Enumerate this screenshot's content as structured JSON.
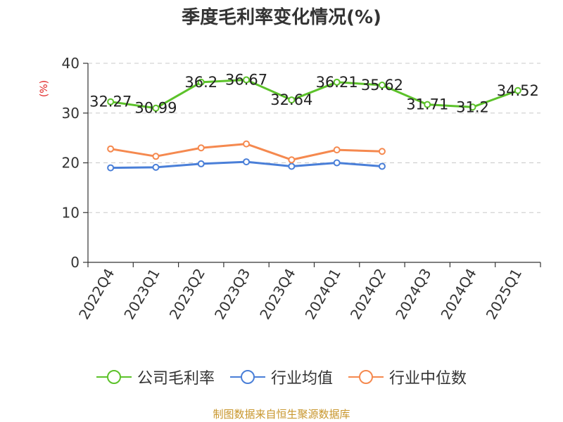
{
  "chart_data": {
    "type": "line",
    "title": "季度毛利率变化情况(%)",
    "ylabel": "(%)",
    "xlabel": "",
    "categories": [
      "2022Q4",
      "2023Q1",
      "2023Q2",
      "2023Q3",
      "2023Q4",
      "2024Q1",
      "2024Q2",
      "2024Q3",
      "2024Q4",
      "2025Q1"
    ],
    "ylim": [
      0,
      40
    ],
    "yticks": [
      0,
      10,
      20,
      30,
      40
    ],
    "grid": true,
    "legend_position": "bottom",
    "series": [
      {
        "name": "公司毛利率",
        "color": "#5cc22a",
        "values": [
          32.27,
          30.99,
          36.2,
          36.67,
          32.64,
          36.21,
          35.62,
          31.71,
          31.2,
          34.52
        ],
        "labels": [
          "32.27",
          "30.99",
          "36.2",
          "36.67",
          "32.64",
          "36.21",
          "35.62",
          "31.71",
          "31.2",
          "34.52"
        ],
        "show_labels": true
      },
      {
        "name": "行业均值",
        "color": "#4a7fd8",
        "values": [
          19.0,
          19.1,
          19.8,
          20.2,
          19.3,
          20.0,
          19.3,
          null,
          null,
          null
        ],
        "show_labels": false
      },
      {
        "name": "行业中位数",
        "color": "#f5894f",
        "values": [
          22.8,
          21.3,
          23.0,
          23.8,
          20.6,
          22.6,
          22.3,
          null,
          null,
          null
        ],
        "show_labels": false
      }
    ]
  },
  "footer": {
    "source": "制图数据来自恒生聚源数据库"
  }
}
